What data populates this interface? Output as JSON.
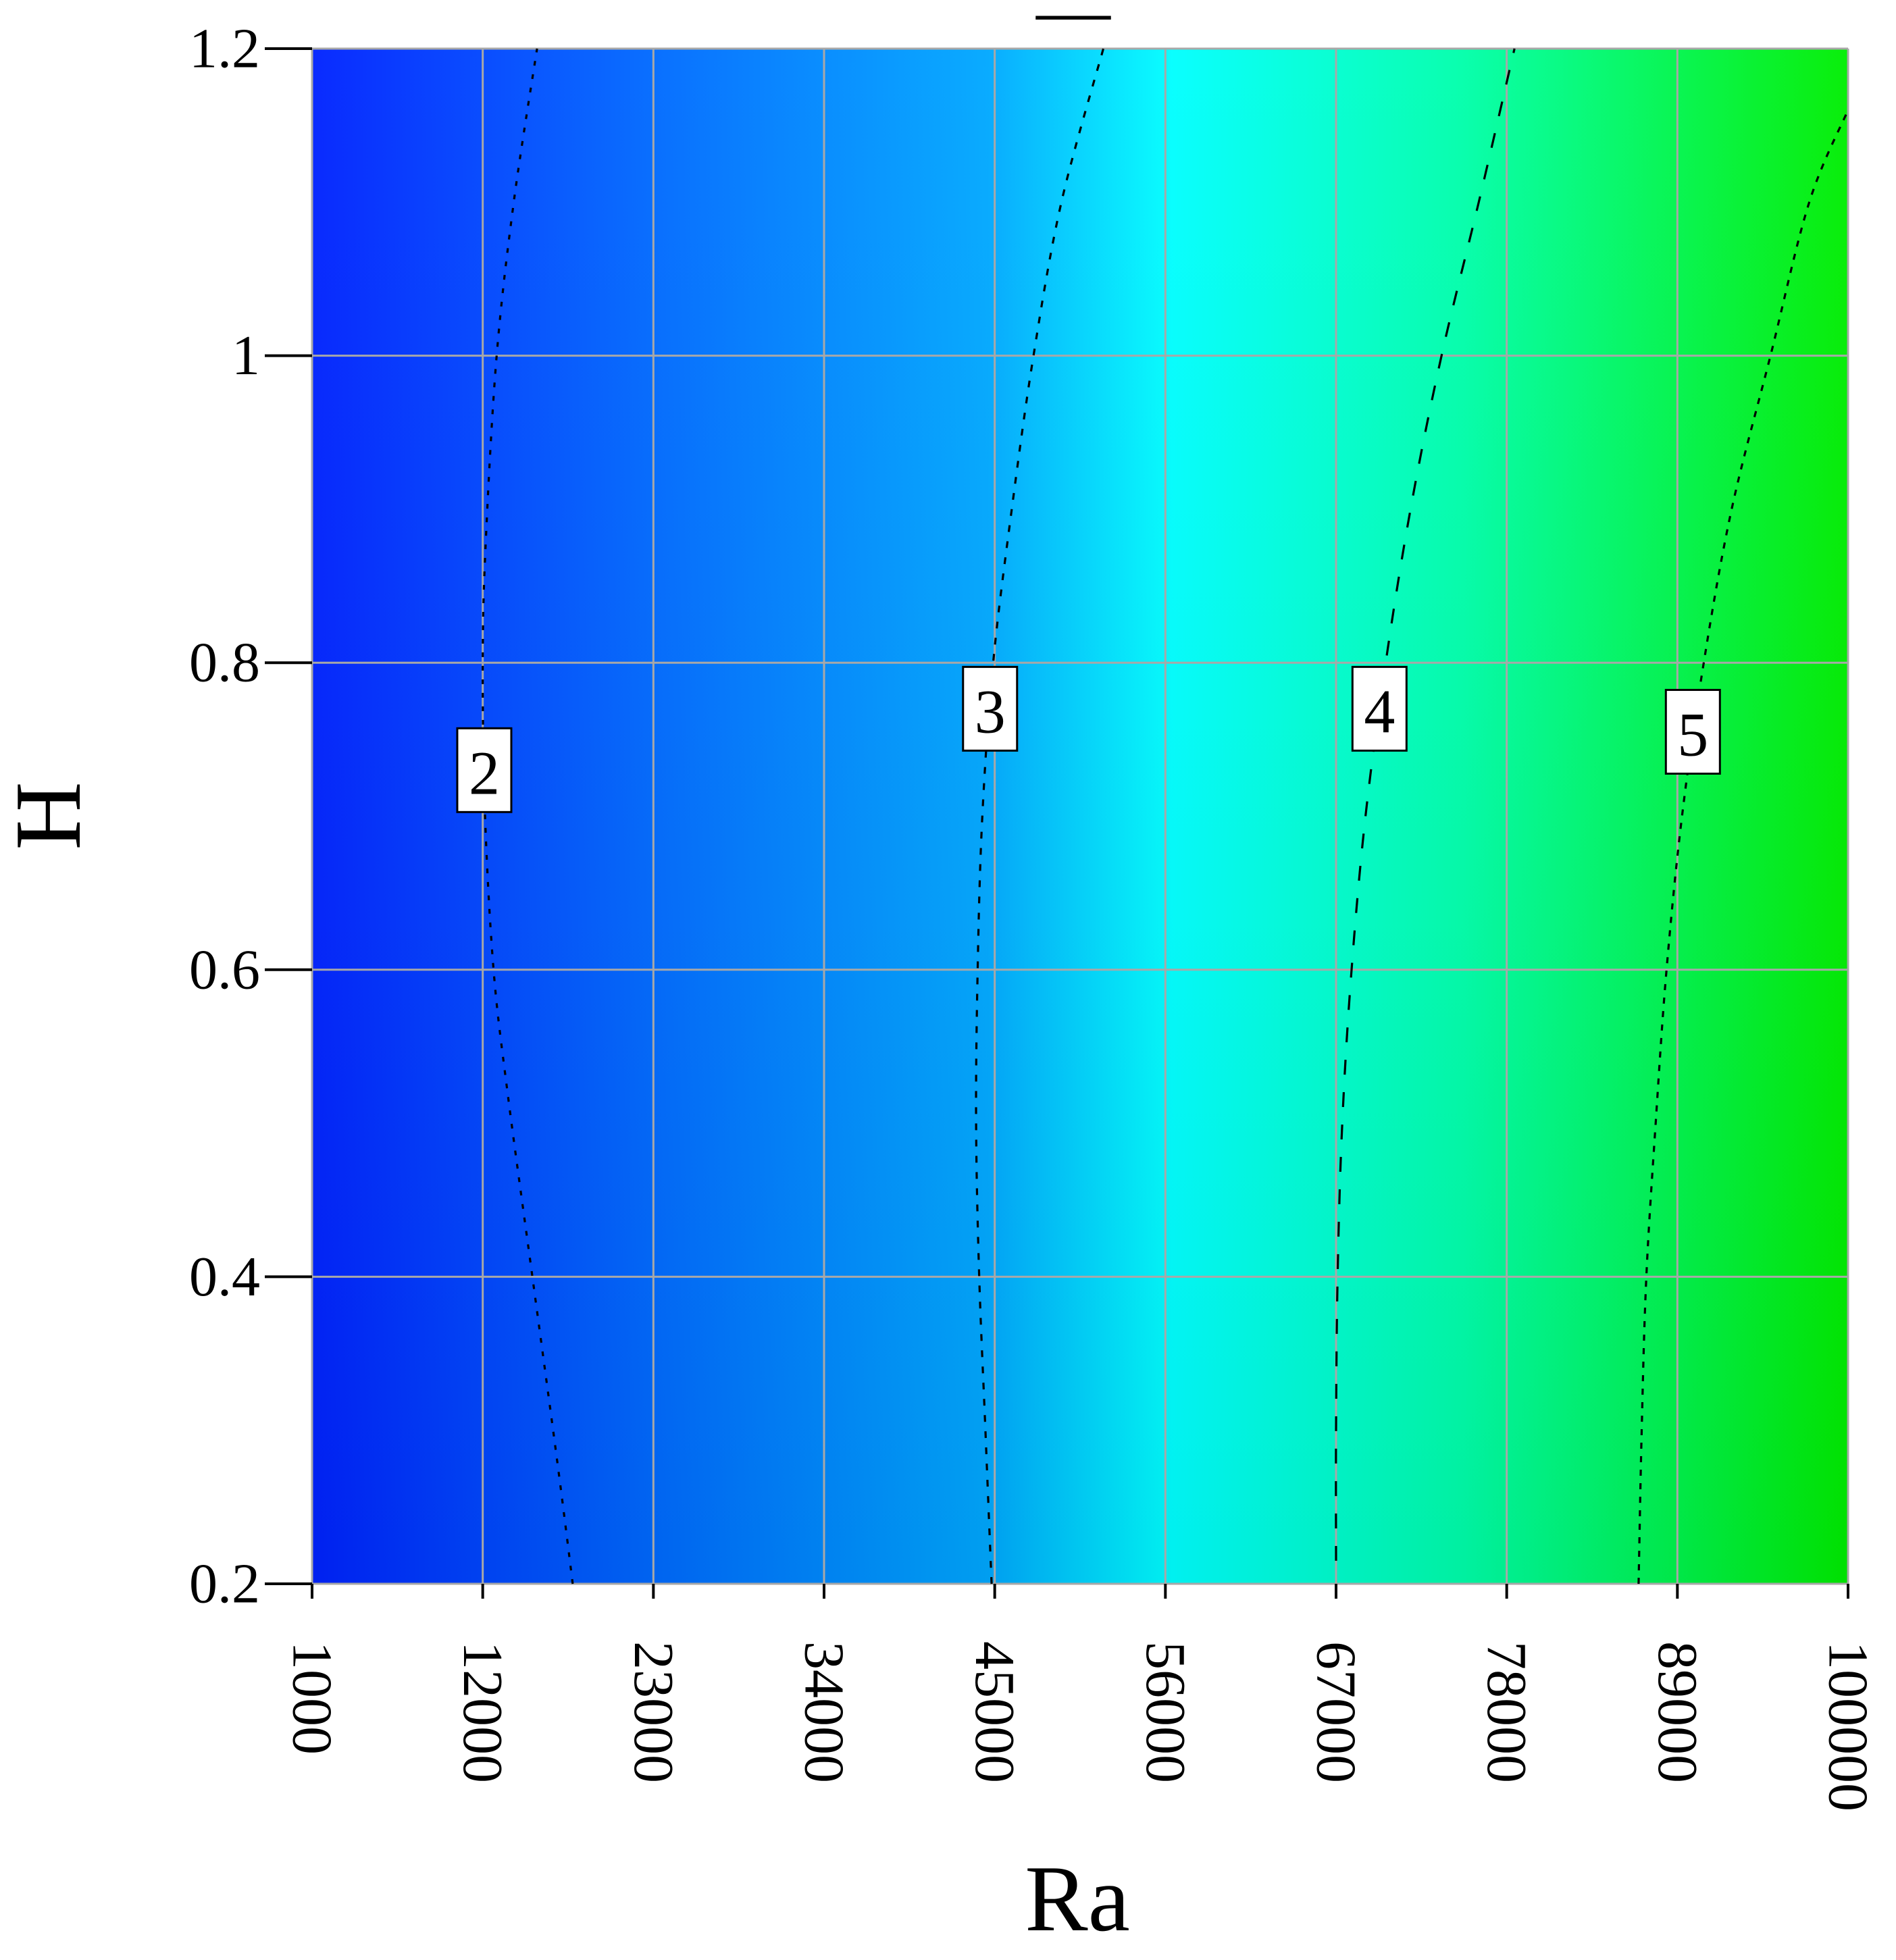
{
  "chart_data": {
    "type": "heatmap",
    "subtype": "filled-contour",
    "title": "—",
    "xlabel": "Ra",
    "ylabel": "H",
    "xlim": [
      1000,
      100000
    ],
    "ylim": [
      0.2,
      1.2
    ],
    "x_ticks": [
      "1000",
      "12000",
      "23000",
      "34000",
      "45000",
      "56000",
      "67000",
      "78000",
      "89000",
      "100000"
    ],
    "y_ticks": [
      "0.2",
      "0.4",
      "0.6",
      "0.8",
      "1",
      "1.2"
    ],
    "x_tick_label_orientation": "rotated-90-clockwise",
    "grid": true,
    "colormap": [
      "#0022ff",
      "#0088ff",
      "#00ffff",
      "#00ff88",
      "#00ee00"
    ],
    "contours": [
      {
        "level": "2",
        "line_style": "dashed",
        "label_at": [
          12100,
          0.73
        ],
        "points": [
          [
            17800,
            0.2
          ],
          [
            16800,
            0.28
          ],
          [
            15200,
            0.4
          ],
          [
            13600,
            0.52
          ],
          [
            12700,
            0.6
          ],
          [
            12150,
            0.7
          ],
          [
            12000,
            0.8
          ],
          [
            12200,
            0.88
          ],
          [
            12900,
            1.0
          ],
          [
            14000,
            1.1
          ],
          [
            15500,
            1.2
          ]
        ]
      },
      {
        "level": "3",
        "line_style": "dashed",
        "label_at": [
          44700,
          0.77
        ],
        "points": [
          [
            44800,
            0.2
          ],
          [
            44400,
            0.3
          ],
          [
            44000,
            0.4
          ],
          [
            43800,
            0.5
          ],
          [
            43900,
            0.6
          ],
          [
            44200,
            0.7
          ],
          [
            44900,
            0.8
          ],
          [
            46100,
            0.9
          ],
          [
            47500,
            1.0
          ],
          [
            49300,
            1.1
          ],
          [
            52000,
            1.2
          ]
        ]
      },
      {
        "level": "4",
        "line_style": "dashed",
        "label_at": [
          69800,
          0.77
        ],
        "points": [
          [
            67000,
            0.215
          ],
          [
            67000,
            0.3
          ],
          [
            67100,
            0.4
          ],
          [
            67400,
            0.5
          ],
          [
            68000,
            0.6
          ],
          [
            68900,
            0.7
          ],
          [
            70200,
            0.8
          ],
          [
            71800,
            0.9
          ],
          [
            73800,
            1.0
          ],
          [
            76200,
            1.1
          ],
          [
            78500,
            1.2
          ]
        ]
      },
      {
        "level": "5",
        "line_style": "dashed",
        "label_at": [
          90000,
          0.755
        ],
        "points": [
          [
            86500,
            0.2
          ],
          [
            86700,
            0.3
          ],
          [
            87000,
            0.4
          ],
          [
            87600,
            0.5
          ],
          [
            88300,
            0.6
          ],
          [
            89300,
            0.7
          ],
          [
            90700,
            0.8
          ],
          [
            92500,
            0.9
          ],
          [
            95000,
            1.0
          ],
          [
            97500,
            1.1
          ],
          [
            100000,
            1.16
          ]
        ]
      }
    ]
  }
}
